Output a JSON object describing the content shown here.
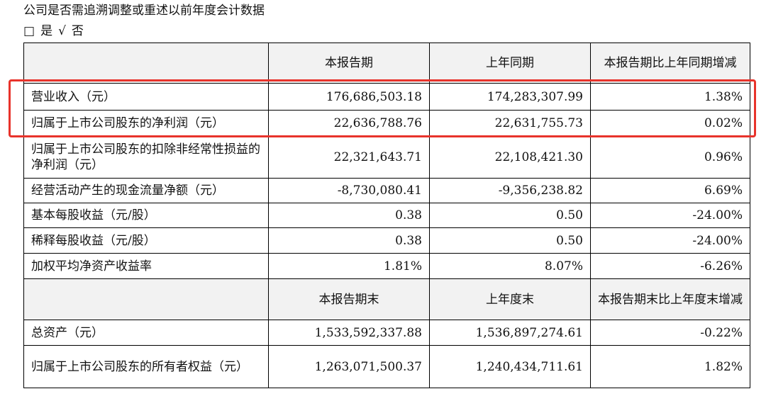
{
  "notice": {
    "question": "公司是否需追溯调整或重述以前年度会计数据",
    "yes_box": "□",
    "yes_label": "是",
    "no_mark": "√",
    "no_label": "否"
  },
  "table": {
    "header1": [
      "本报告期",
      "上年同期",
      "本报告期比上年同期增减"
    ],
    "rows1": [
      [
        "营业收入（元）",
        "176,686,503.18",
        "174,283,307.99",
        "1.38%"
      ],
      [
        "归属于上市公司股东的净利润（元）",
        "22,636,788.76",
        "22,631,755.73",
        "0.02%"
      ],
      [
        "归属于上市公司股东的扣除非经常性损益的净利润（元）",
        "22,321,643.71",
        "22,108,421.30",
        "0.96%"
      ],
      [
        "经营活动产生的现金流量净额（元）",
        "-8,730,080.41",
        "-9,356,238.82",
        "6.69%"
      ],
      [
        "基本每股收益（元/股）",
        "0.38",
        "0.50",
        "-24.00%"
      ],
      [
        "稀释每股收益（元/股）",
        "0.38",
        "0.50",
        "-24.00%"
      ],
      [
        "加权平均净资产收益率",
        "1.81%",
        "8.07%",
        "-6.26%"
      ]
    ],
    "header2": [
      "本报告期末",
      "上年度末",
      "本报告期末比上年度末增减"
    ],
    "rows2": [
      [
        "总资产（元）",
        "1,533,592,337.88",
        "1,536,897,274.61",
        "-0.22%"
      ],
      [
        "归属于上市公司股东的所有者权益（元）",
        "1,263,071,500.37",
        "1,240,434,711.61",
        "1.82%"
      ]
    ]
  },
  "highlight_color": "#e8332b"
}
